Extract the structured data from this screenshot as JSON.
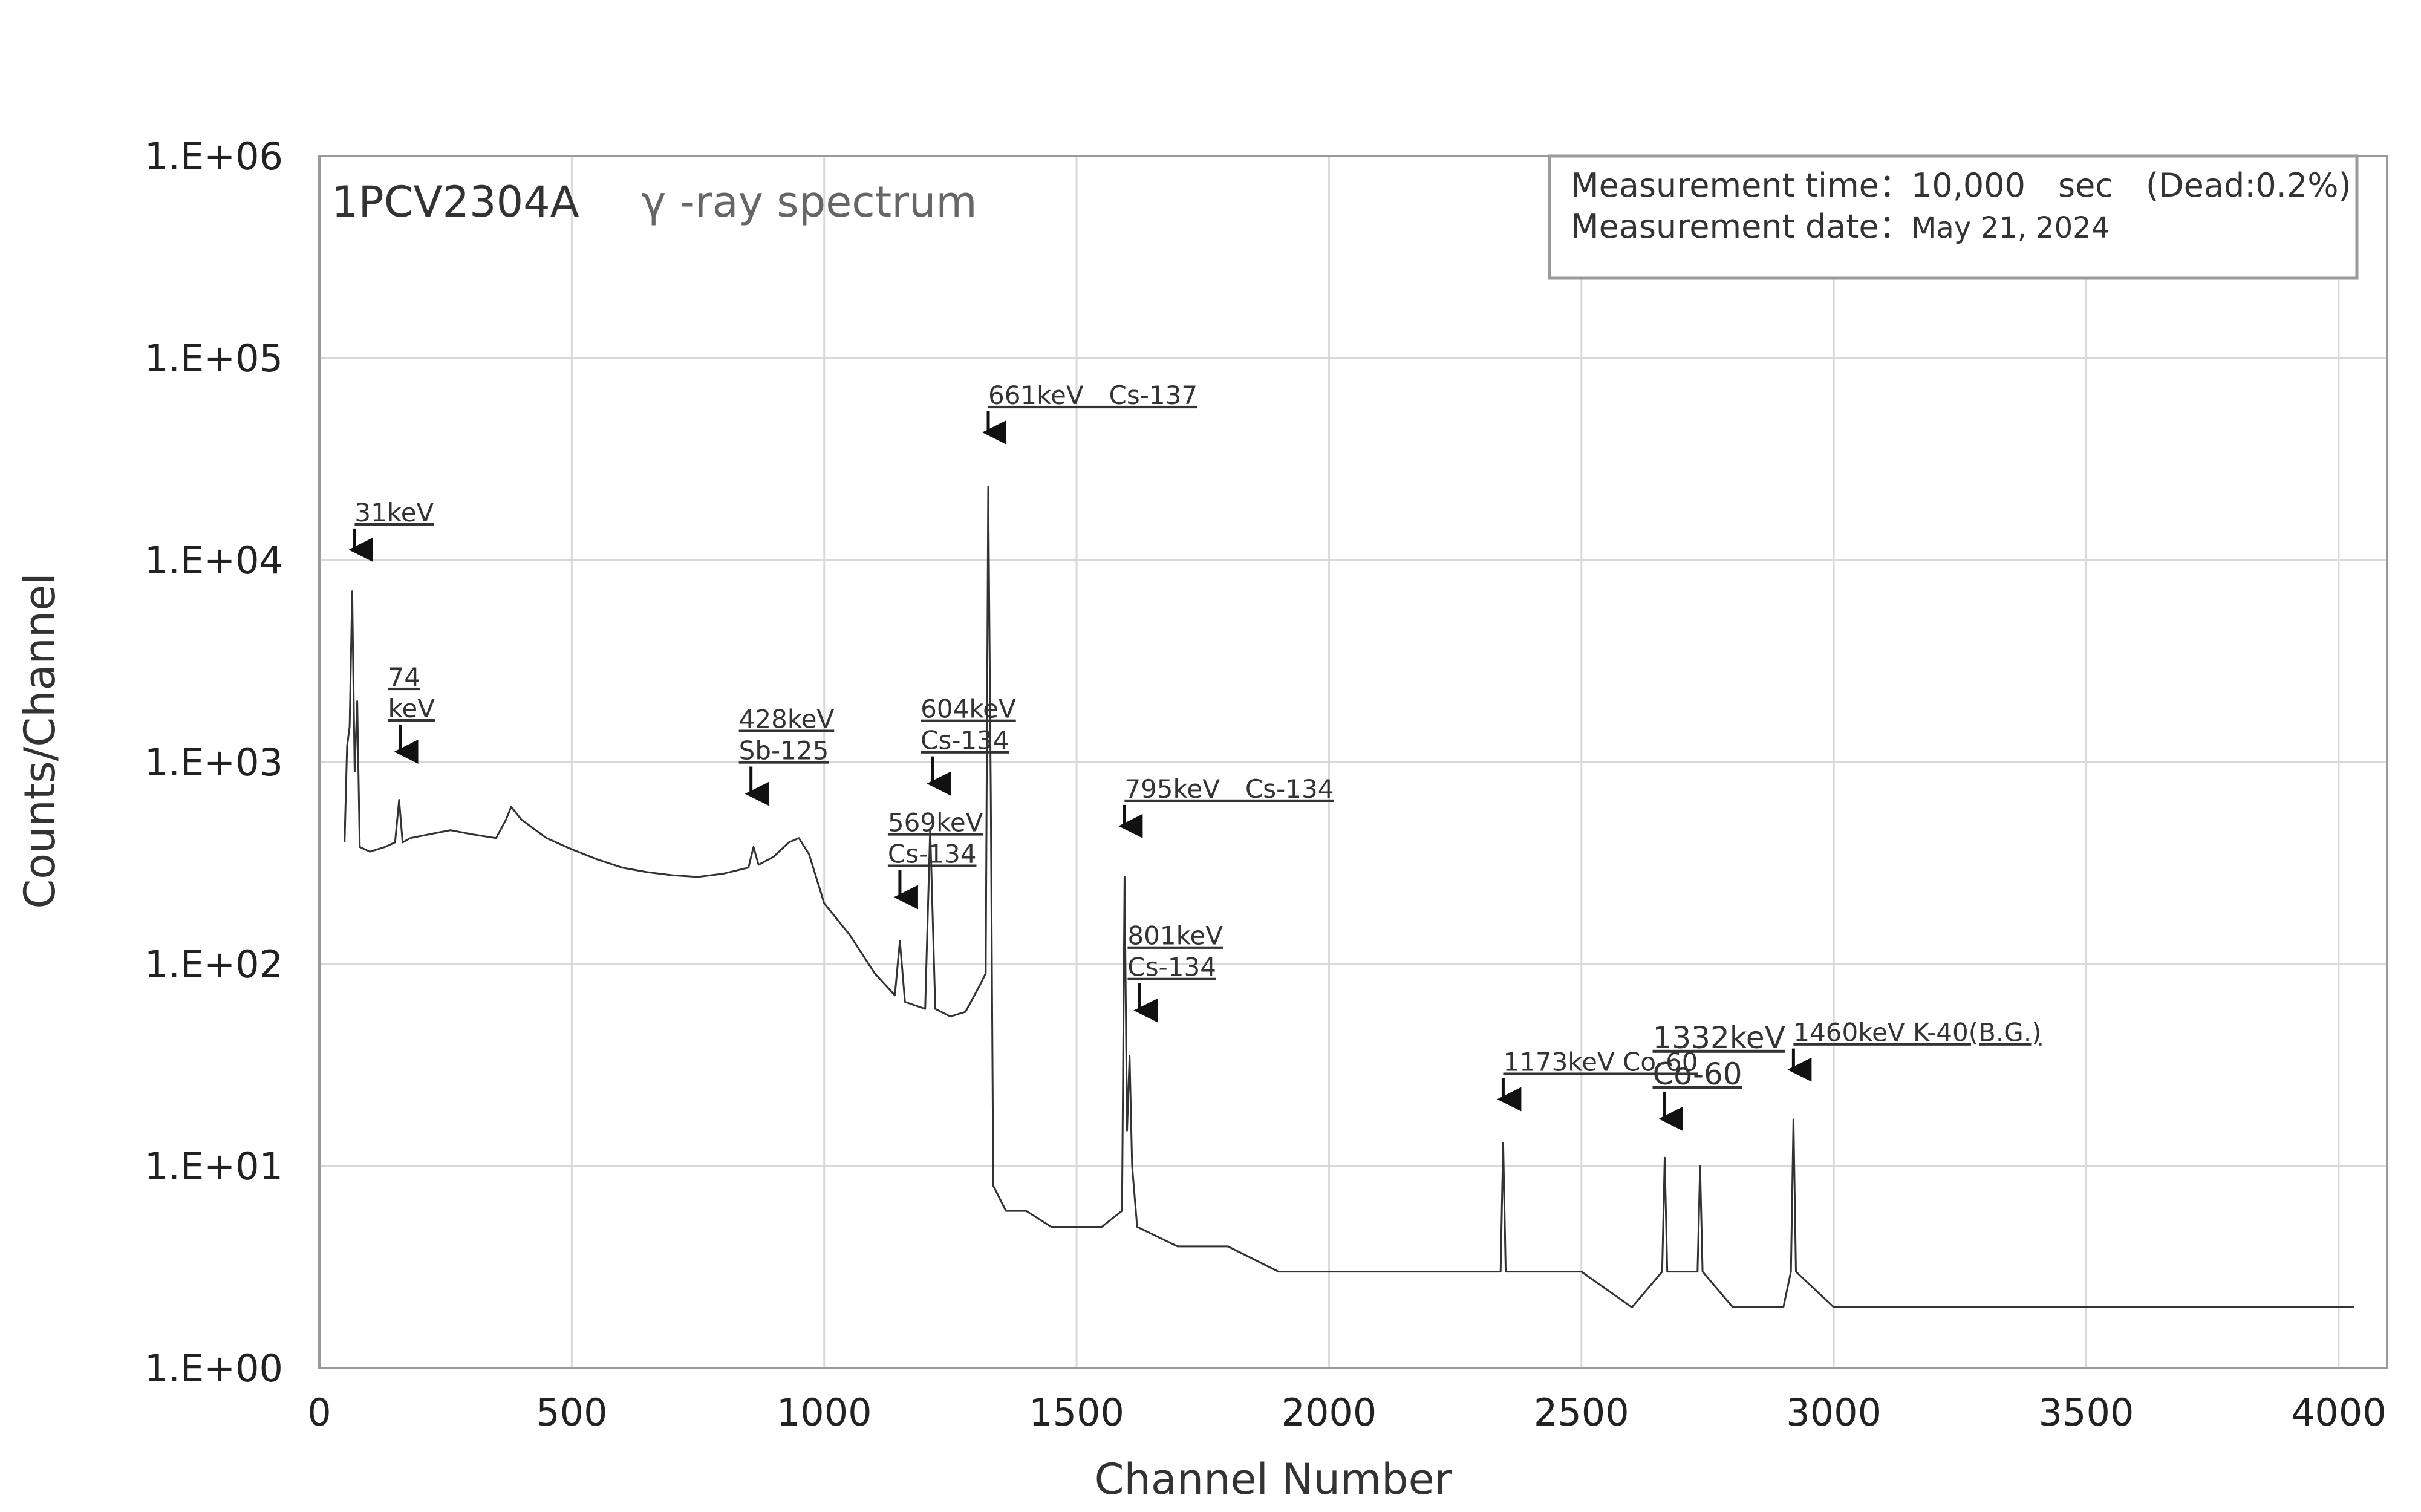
{
  "chart_data": {
    "type": "line",
    "title": "1PCV2304A",
    "subtitle": "γ -ray spectrum",
    "xlabel": "Channel Number",
    "ylabel": "Counts/Channel",
    "xlim": [
      0,
      4096
    ],
    "ylim": [
      1,
      1000000
    ],
    "yscale": "log",
    "grid": true,
    "x_ticks": [
      "0",
      "500",
      "1000",
      "1500",
      "2000",
      "2500",
      "3000",
      "3500",
      "4000"
    ],
    "y_ticks": [
      "1.E+00",
      "1.E+01",
      "1.E+02",
      "1.E+03",
      "1.E+04",
      "1.E+05",
      "1.E+06"
    ],
    "info_box": {
      "placement": "top-right",
      "time_label": "Measurement time：",
      "time_value": "10,000　sec　(Dead:0.2%)",
      "date_label": "Measurement date：",
      "date_value": "May 21, 2024"
    },
    "series": [
      {
        "color": "#333333",
        "points": [
          [
            50,
            400
          ],
          [
            55,
            1200
          ],
          [
            60,
            1500
          ],
          [
            65,
            7000
          ],
          [
            70,
            900
          ],
          [
            75,
            2000
          ],
          [
            80,
            380
          ],
          [
            100,
            360
          ],
          [
            130,
            380
          ],
          [
            150,
            400
          ],
          [
            158,
            650
          ],
          [
            165,
            400
          ],
          [
            180,
            420
          ],
          [
            220,
            440
          ],
          [
            260,
            460
          ],
          [
            300,
            440
          ],
          [
            350,
            420
          ],
          [
            370,
            520
          ],
          [
            380,
            600
          ],
          [
            400,
            520
          ],
          [
            450,
            420
          ],
          [
            500,
            370
          ],
          [
            550,
            330
          ],
          [
            600,
            300
          ],
          [
            650,
            285
          ],
          [
            700,
            275
          ],
          [
            750,
            270
          ],
          [
            800,
            280
          ],
          [
            850,
            300
          ],
          [
            860,
            380
          ],
          [
            870,
            310
          ],
          [
            900,
            340
          ],
          [
            930,
            400
          ],
          [
            950,
            420
          ],
          [
            970,
            350
          ],
          [
            1000,
            200
          ],
          [
            1050,
            140
          ],
          [
            1100,
            90
          ],
          [
            1140,
            70
          ],
          [
            1150,
            130
          ],
          [
            1160,
            65
          ],
          [
            1200,
            60
          ],
          [
            1210,
            470
          ],
          [
            1220,
            60
          ],
          [
            1250,
            55
          ],
          [
            1280,
            58
          ],
          [
            1310,
            80
          ],
          [
            1320,
            90
          ],
          [
            1325,
            23000
          ],
          [
            1330,
            700
          ],
          [
            1335,
            8
          ],
          [
            1360,
            6
          ],
          [
            1400,
            6
          ],
          [
            1450,
            5
          ],
          [
            1500,
            5
          ],
          [
            1550,
            5
          ],
          [
            1590,
            6
          ],
          [
            1595,
            270
          ],
          [
            1600,
            15
          ],
          [
            1605,
            35
          ],
          [
            1610,
            10
          ],
          [
            1620,
            5
          ],
          [
            1700,
            4
          ],
          [
            1800,
            4
          ],
          [
            1900,
            3
          ],
          [
            2000,
            3
          ],
          [
            2100,
            3
          ],
          [
            2200,
            3
          ],
          [
            2300,
            3
          ],
          [
            2340,
            3
          ],
          [
            2345,
            13
          ],
          [
            2350,
            3
          ],
          [
            2400,
            3
          ],
          [
            2500,
            3
          ],
          [
            2600,
            2
          ],
          [
            2660,
            3
          ],
          [
            2665,
            11
          ],
          [
            2670,
            3
          ],
          [
            2730,
            3
          ],
          [
            2735,
            10
          ],
          [
            2740,
            3
          ],
          [
            2800,
            2
          ],
          [
            2900,
            2
          ],
          [
            2915,
            3
          ],
          [
            2920,
            17
          ],
          [
            2925,
            3
          ],
          [
            3000,
            2
          ],
          [
            3200,
            2
          ],
          [
            3400,
            2
          ],
          [
            3600,
            2
          ],
          [
            3800,
            2
          ],
          [
            4000,
            2
          ],
          [
            4030,
            2
          ]
        ]
      }
    ],
    "annotations": [
      {
        "text": "31keV",
        "x": 70,
        "y": 10500
      },
      {
        "text": "74\nkeV",
        "x": 160,
        "y": 1050
      },
      {
        "text": "428keV\nSb-125",
        "x": 855,
        "y": 650
      },
      {
        "text": "569keV\nCs-134",
        "x": 1150,
        "y": 200
      },
      {
        "text": "604keV\nCs-134",
        "x": 1215,
        "y": 730
      },
      {
        "text": "661keV　Cs-137",
        "x": 1325,
        "y": 40000
      },
      {
        "text": "795keV　Cs-134",
        "x": 1595,
        "y": 450
      },
      {
        "text": "801keV\nCs-134",
        "x": 1625,
        "y": 55
      },
      {
        "text": "1173keV  Co-60",
        "x": 2345,
        "y": 20
      },
      {
        "text": "1332keV\nCo-60",
        "x": 2665,
        "y": 16
      },
      {
        "text": "1460keV K-40(B.G.)",
        "x": 2920,
        "y": 28
      }
    ]
  }
}
